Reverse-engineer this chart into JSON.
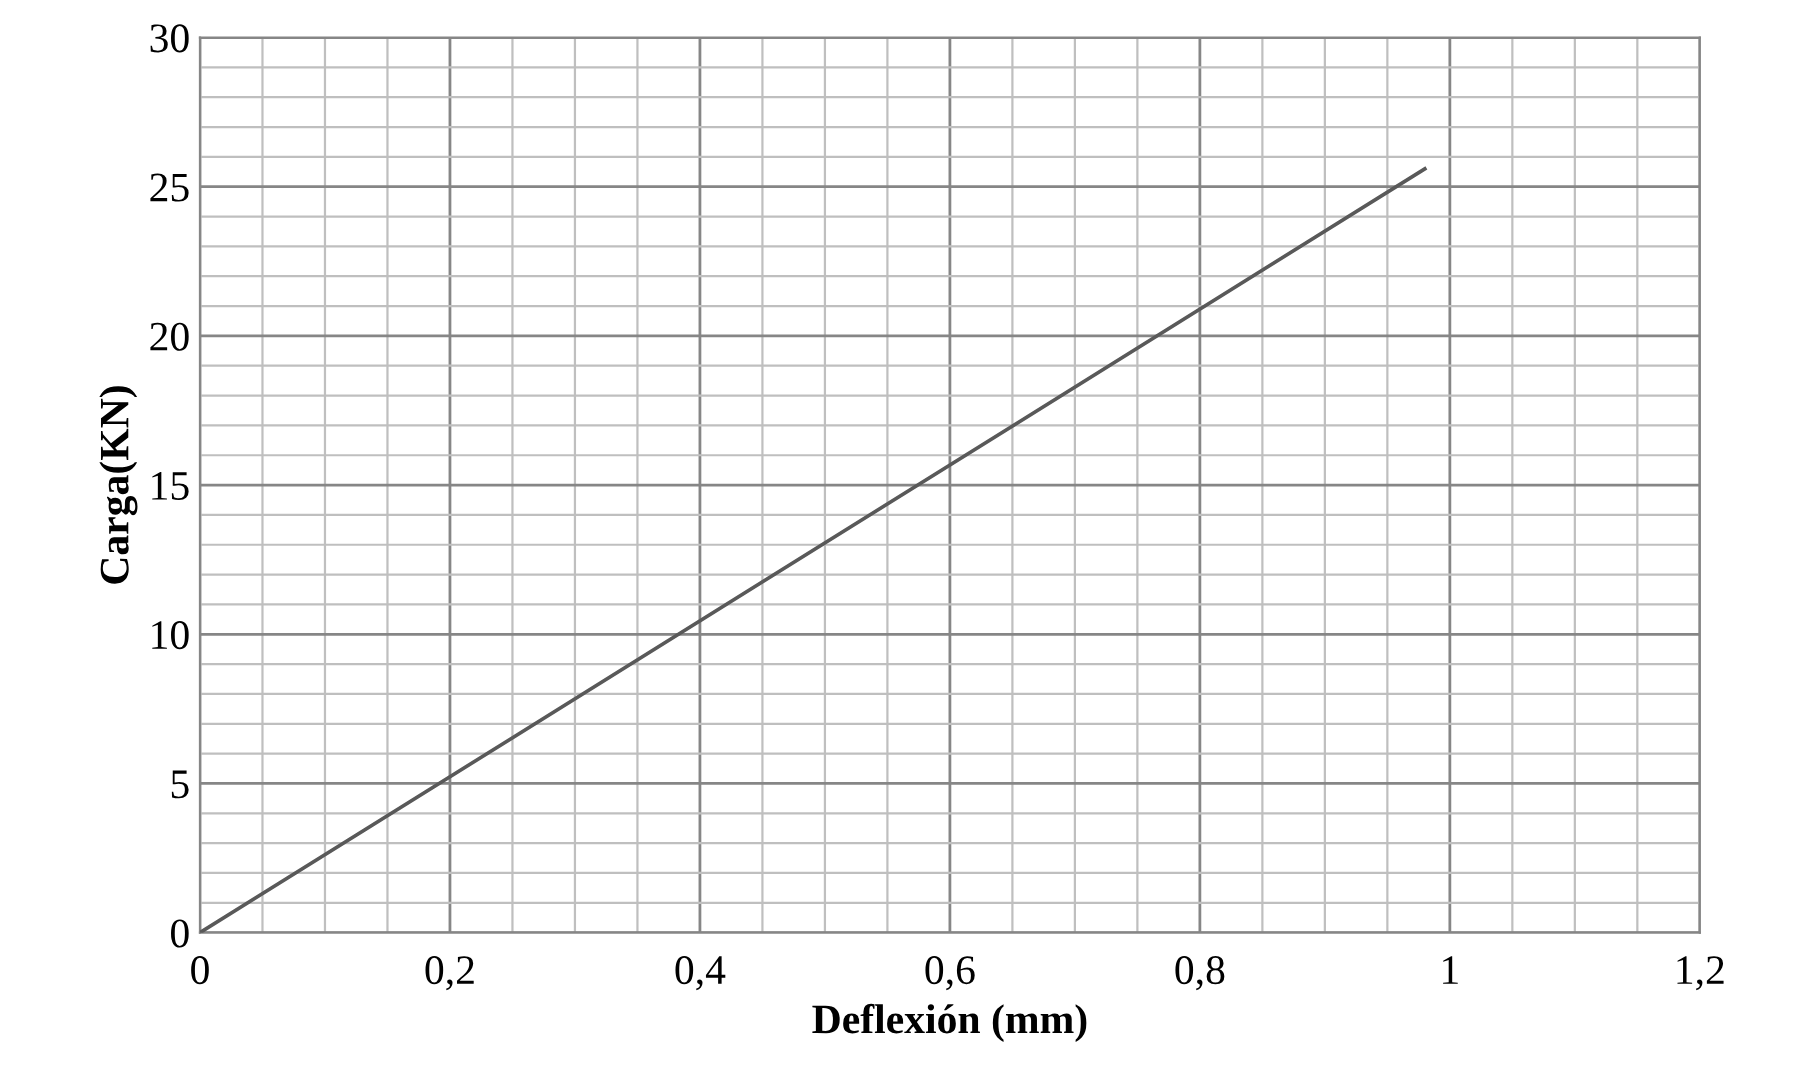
{
  "chart_data": {
    "type": "line",
    "xlabel": "Deflexión (mm)",
    "ylabel": "Carga(KN)",
    "series": [
      {
        "color": "#595959",
        "x": [
          0,
          0.98
        ],
        "values": [
          0,
          25.6
        ]
      }
    ],
    "xlim": [
      0,
      1.2
    ],
    "ylim": [
      0,
      30
    ],
    "xticks": [
      {
        "value": 0,
        "label": "0"
      },
      {
        "value": 0.05,
        "label": null
      },
      {
        "value": 0.1,
        "label": null
      },
      {
        "value": 0.15,
        "label": null
      },
      {
        "value": 0.2,
        "label": "0,2"
      },
      {
        "value": 0.25,
        "label": null
      },
      {
        "value": 0.3,
        "label": null
      },
      {
        "value": 0.35,
        "label": null
      },
      {
        "value": 0.4,
        "label": "0,4"
      },
      {
        "value": 0.45,
        "label": null
      },
      {
        "value": 0.5,
        "label": null
      },
      {
        "value": 0.55,
        "label": null
      },
      {
        "value": 0.6,
        "label": "0,6"
      },
      {
        "value": 0.65,
        "label": null
      },
      {
        "value": 0.7,
        "label": null
      },
      {
        "value": 0.75,
        "label": null
      },
      {
        "value": 0.8,
        "label": "0,8"
      },
      {
        "value": 0.85,
        "label": null
      },
      {
        "value": 0.9,
        "label": null
      },
      {
        "value": 0.95,
        "label": null
      },
      {
        "value": 1,
        "label": "1"
      },
      {
        "value": 1.05,
        "label": null
      },
      {
        "value": 1.1,
        "label": null
      },
      {
        "value": 1.15,
        "label": null
      },
      {
        "value": 1.2,
        "label": "1,2"
      }
    ],
    "yticks": [
      0,
      {
        "value": 1,
        "label": null
      },
      {
        "value": 2,
        "label": null
      },
      {
        "value": 3,
        "label": null
      },
      {
        "value": 4,
        "label": null
      },
      5,
      {
        "value": 6,
        "label": null
      },
      {
        "value": 7,
        "label": null
      },
      {
        "value": 8,
        "label": null
      },
      {
        "value": 9,
        "label": null
      },
      10,
      {
        "value": 11,
        "label": null
      },
      {
        "value": 12,
        "label": null
      },
      {
        "value": 13,
        "label": null
      },
      {
        "value": 14,
        "label": null
      },
      15,
      {
        "value": 16,
        "label": null
      },
      {
        "value": 17,
        "label": null
      },
      {
        "value": 18,
        "label": null
      },
      {
        "value": 19,
        "label": null
      },
      20,
      {
        "value": 21,
        "label": null
      },
      {
        "value": 22,
        "label": null
      },
      {
        "value": 23,
        "label": null
      },
      {
        "value": 24,
        "label": null
      },
      25,
      {
        "value": 26,
        "label": null
      },
      {
        "value": 27,
        "label": null
      },
      {
        "value": 28,
        "label": null
      },
      {
        "value": 29,
        "label": null
      },
      30
    ],
    "grid": true,
    "marker": "none",
    "line_style": "solid"
  }
}
